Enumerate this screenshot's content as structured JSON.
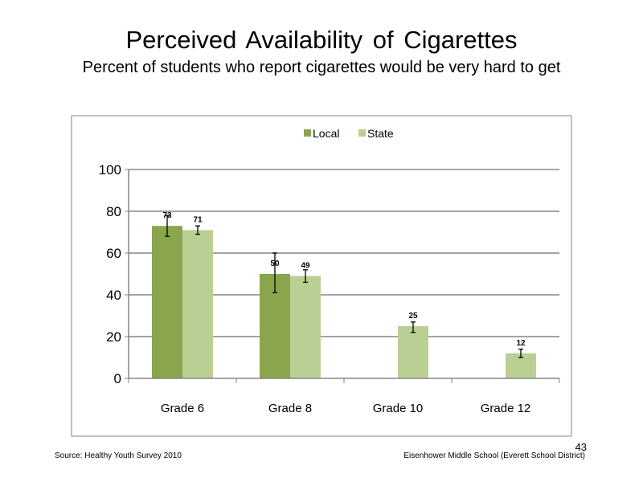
{
  "title": "Perceived  Availability  of Cigarettes",
  "subtitle": "Percent  of students  who report cigarettes would  be very hard to get",
  "source": "Source: Healthy  Youth Survey 2010",
  "footer": "Eisenhower Middle  School (Everett School District)",
  "page_number": "43",
  "colors": {
    "local": "#8aa64d",
    "state": "#bacf94"
  },
  "chart_data": {
    "type": "bar",
    "categories": [
      "Grade 6",
      "Grade 8",
      "Grade 10",
      "Grade 12"
    ],
    "series": [
      {
        "name": "Local",
        "values": [
          73,
          50,
          null,
          null
        ],
        "err_low": [
          68,
          41,
          null,
          null
        ],
        "err_high": [
          78,
          60,
          null,
          null
        ]
      },
      {
        "name": "State",
        "values": [
          71,
          49,
          25,
          12
        ],
        "err_low": [
          69,
          46,
          22,
          10
        ],
        "err_high": [
          73,
          52,
          27,
          14
        ]
      }
    ],
    "data_labels": [
      [
        "73",
        "50",
        "",
        ""
      ],
      [
        "71",
        "49",
        "25",
        "12"
      ]
    ],
    "ylim": [
      0,
      100
    ],
    "yticks": [
      "0",
      "20",
      "40",
      "60",
      "80",
      "100"
    ],
    "grid": true,
    "legend": "top-center"
  }
}
